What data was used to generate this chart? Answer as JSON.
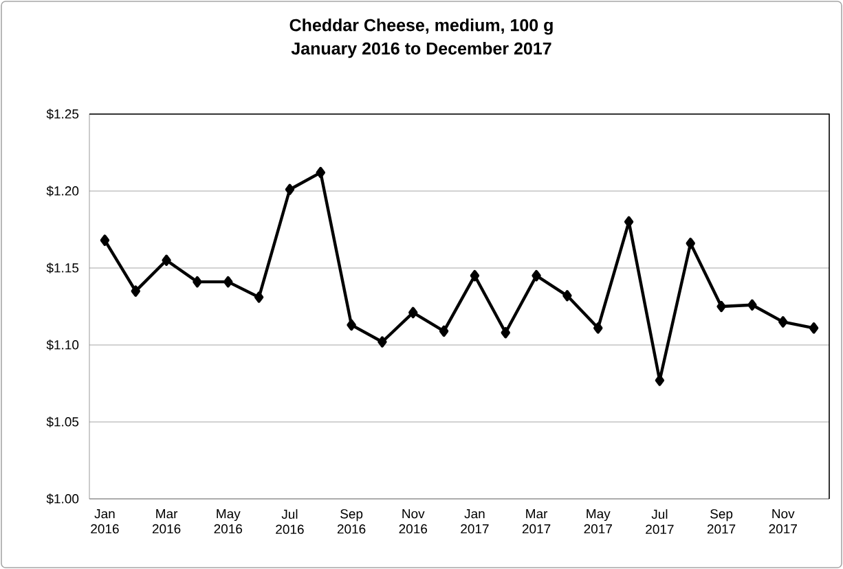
{
  "chart_data": {
    "type": "line",
    "title": "Cheddar Cheese, medium, 100 g",
    "subtitle": "January 2016 to December 2017",
    "categories": [
      "Jan 2016",
      null,
      "Mar 2016",
      null,
      "May 2016",
      null,
      "Jul 2016",
      null,
      "Sep 2016",
      null,
      "Nov 2016",
      null,
      "Jan 2017",
      null,
      "Mar 2017",
      null,
      "May 2017",
      null,
      "Jul 2017",
      null,
      "Sep 2017",
      null,
      "Nov 2017",
      null
    ],
    "values": [
      1.168,
      1.135,
      1.155,
      1.141,
      1.141,
      1.131,
      1.201,
      1.212,
      1.113,
      1.102,
      1.121,
      1.109,
      1.145,
      1.108,
      1.145,
      1.132,
      1.111,
      1.18,
      1.077,
      1.166,
      1.125,
      1.126,
      1.115,
      1.111
    ],
    "color": "#000000",
    "marker": "diamond",
    "line_style": "solid",
    "grid": "y",
    "ylim": [
      1.0,
      1.25
    ],
    "yticks": [
      {
        "value": 1.0,
        "label": "$1.00"
      },
      {
        "value": 1.05,
        "label": "$1.05"
      },
      {
        "value": 1.1,
        "label": "$1.10"
      },
      {
        "value": 1.15,
        "label": "$1.15"
      },
      {
        "value": 1.2,
        "label": "$1.20"
      },
      {
        "value": 1.25,
        "label": "$1.25"
      }
    ]
  }
}
